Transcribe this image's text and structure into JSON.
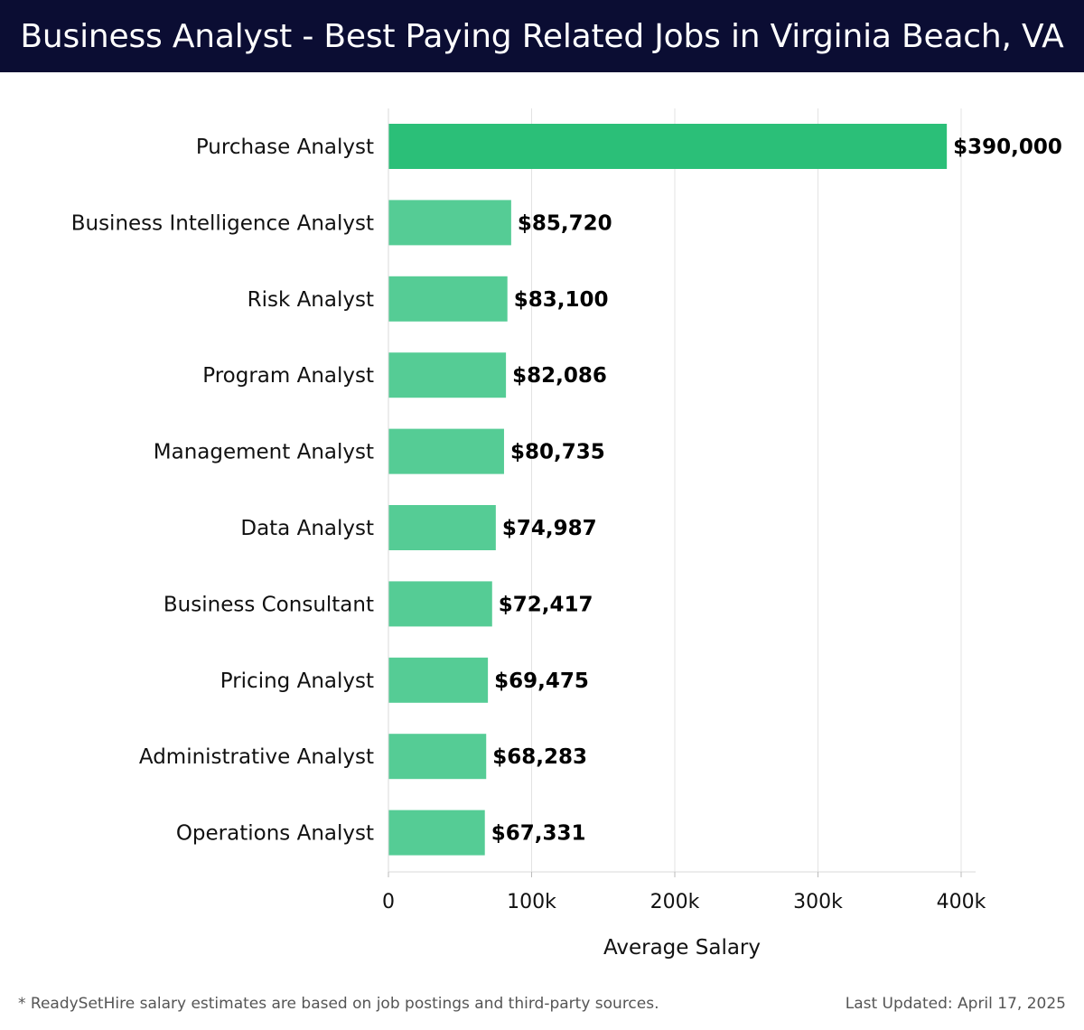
{
  "header": {
    "title": "Business Analyst - Best Paying Related Jobs in Virginia Beach, VA"
  },
  "footer": {
    "note": "* ReadySetHire salary estimates are based on job postings and third-party sources.",
    "last_updated": "Last Updated: April 17, 2025"
  },
  "colors": {
    "header_bg": "#0b0d33",
    "highlight_bar": "#2bbf78",
    "bar": "#55cc95"
  },
  "chart_data": {
    "type": "bar",
    "orientation": "horizontal",
    "title": "Business Analyst - Best Paying Related Jobs in Virginia Beach, VA",
    "xlabel": "Average Salary",
    "ylabel": "",
    "xlim": [
      0,
      400000
    ],
    "xticks": [
      0,
      100000,
      200000,
      300000,
      400000
    ],
    "xtick_labels": [
      "0",
      "100k",
      "200k",
      "300k",
      "400k"
    ],
    "grid": true,
    "categories": [
      "Purchase Analyst",
      "Business Intelligence Analyst",
      "Risk Analyst",
      "Program Analyst",
      "Management Analyst",
      "Data Analyst",
      "Business Consultant",
      "Pricing Analyst",
      "Administrative Analyst",
      "Operations Analyst"
    ],
    "values": [
      390000,
      85720,
      83100,
      82086,
      80735,
      74987,
      72417,
      69475,
      68283,
      67331
    ],
    "value_labels": [
      "$390,000",
      "$85,720",
      "$83,100",
      "$82,086",
      "$80,735",
      "$74,987",
      "$72,417",
      "$69,475",
      "$68,283",
      "$67,331"
    ]
  }
}
